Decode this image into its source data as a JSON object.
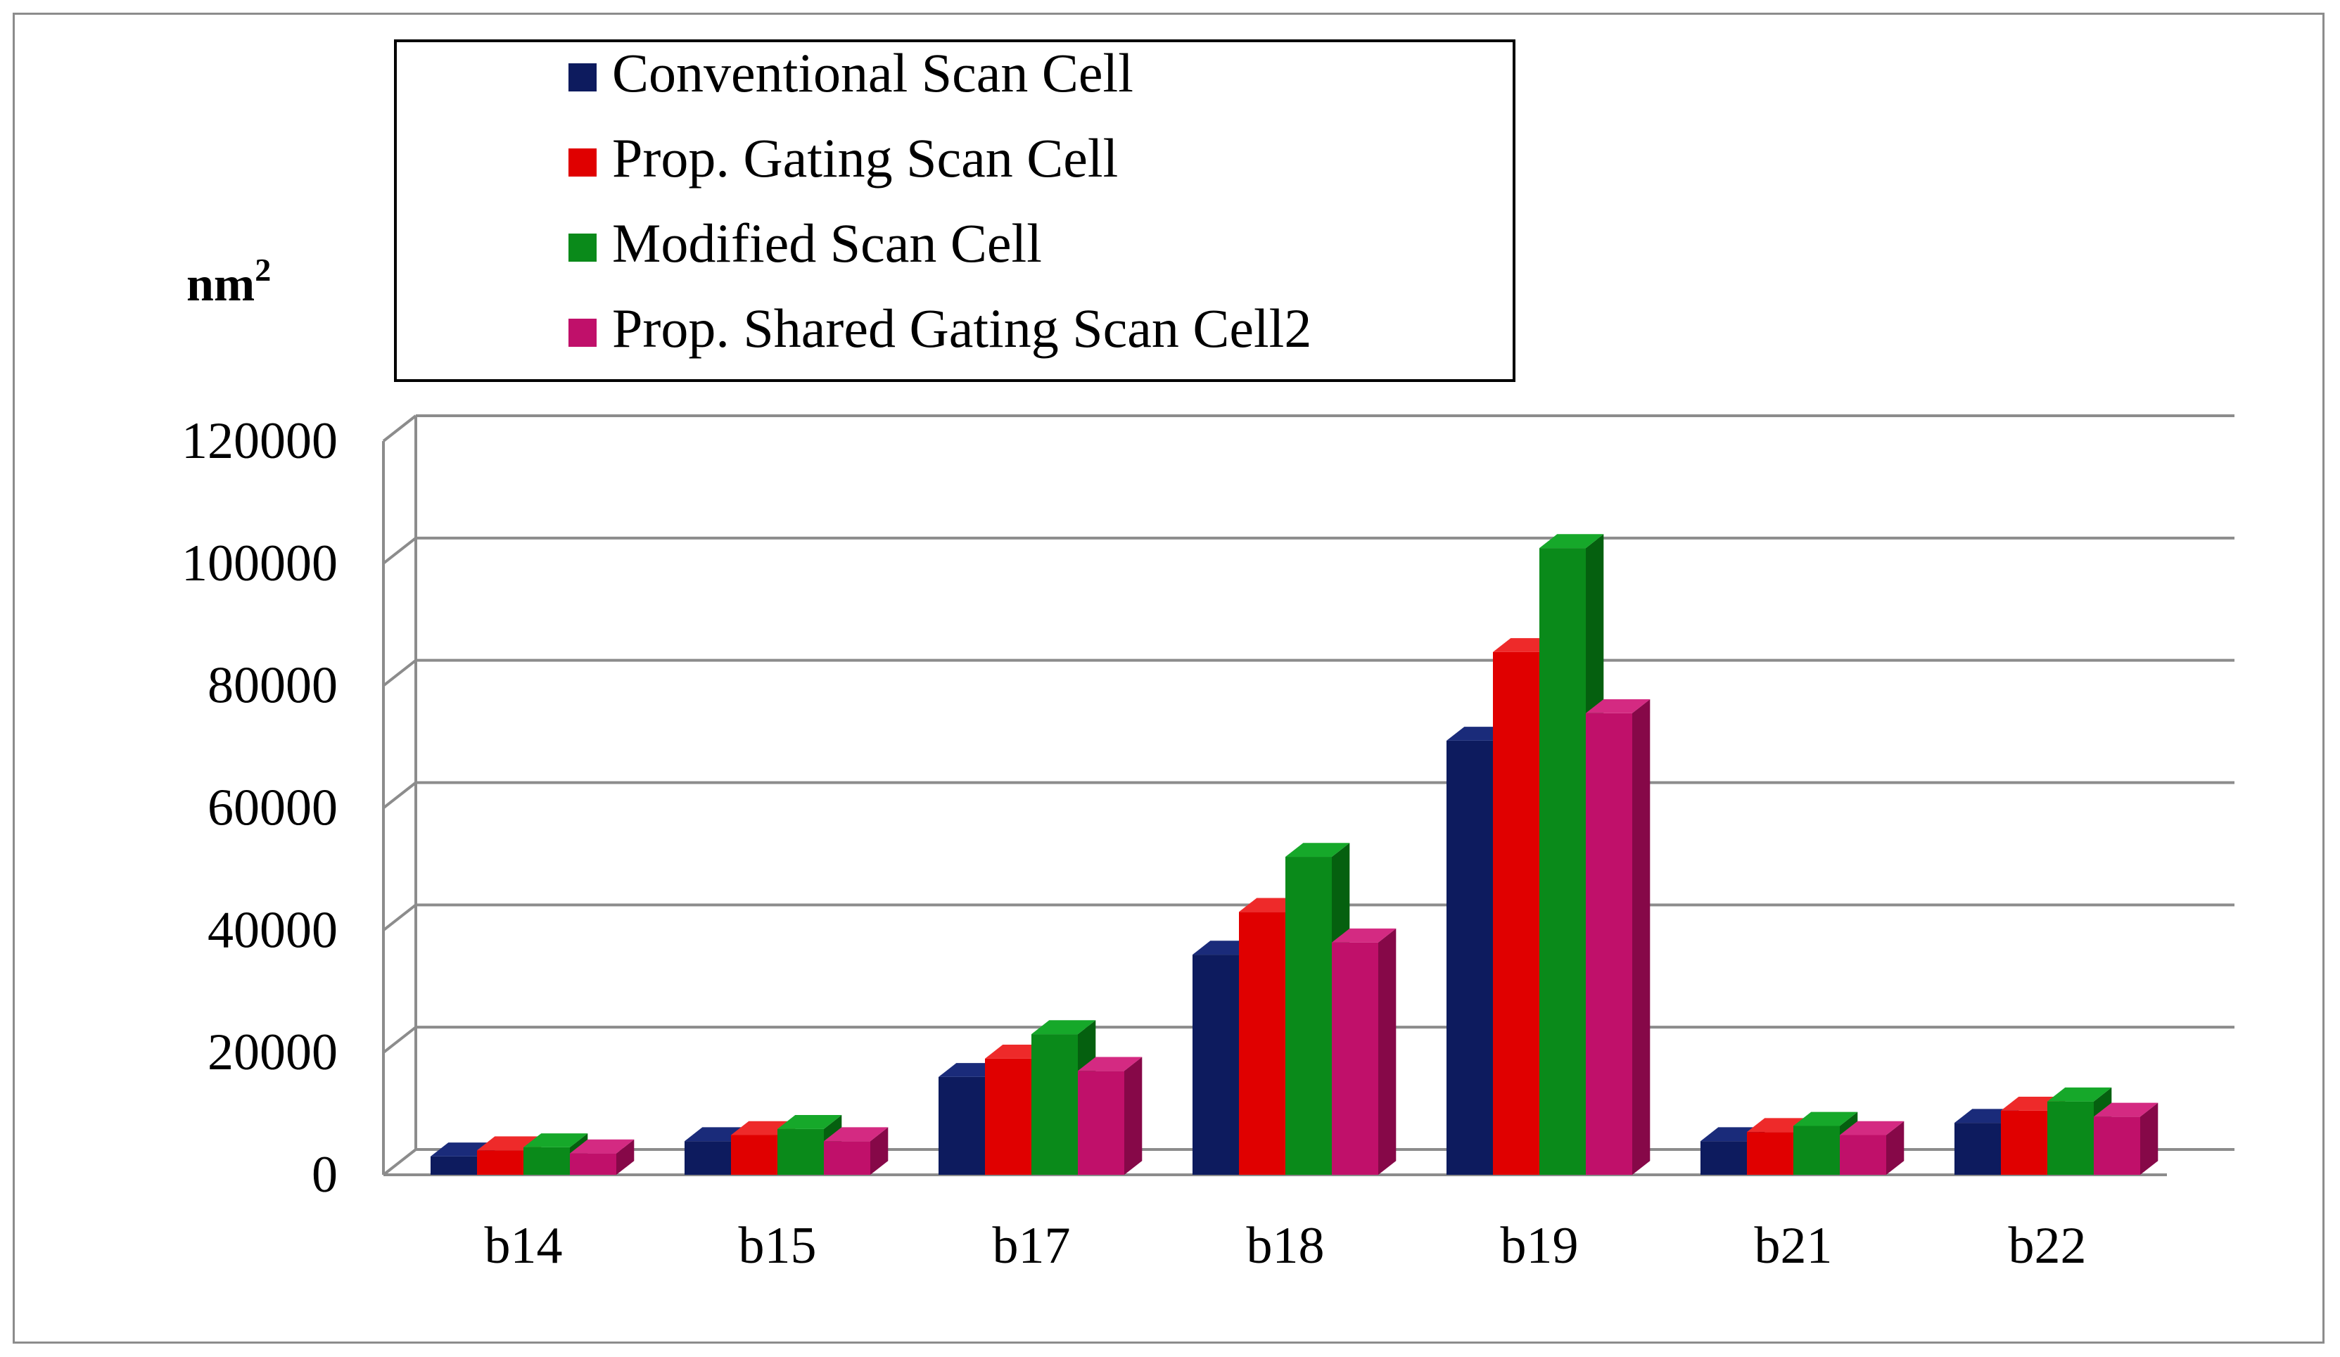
{
  "chart_data": {
    "type": "bar",
    "title": "",
    "xlabel": "",
    "ylabel": "nm",
    "ylabel_superscript": "2",
    "ylim": [
      0,
      120000
    ],
    "yticks": [
      0,
      20000,
      40000,
      60000,
      80000,
      100000,
      120000
    ],
    "grid": true,
    "legend_position": "top",
    "categories": [
      "b14",
      "b15",
      "b17",
      "b18",
      "b19",
      "b21",
      "b22"
    ],
    "series": [
      {
        "name": "Conventional Scan Cell",
        "color": "#0d1b5e",
        "side_color": "#061040",
        "top_color": "#1a2b7a",
        "values": [
          3000,
          5500,
          16000,
          36000,
          71000,
          5500,
          8500
        ]
      },
      {
        "name": "Prop. Gating Scan Cell",
        "color": "#e00000",
        "side_color": "#9a0000",
        "top_color": "#ee2a2a",
        "values": [
          4000,
          6500,
          19000,
          43000,
          85500,
          7000,
          10500
        ]
      },
      {
        "name": "Modified Scan Cell",
        "color": "#0a8a1a",
        "side_color": "#05600f",
        "top_color": "#16a82a",
        "values": [
          4500,
          7500,
          23000,
          52000,
          102500,
          8000,
          12000
        ]
      },
      {
        "name": "Prop. Shared Gating Scan Cell2",
        "color": "#c0106a",
        "side_color": "#860848",
        "top_color": "#d42a82",
        "values": [
          3500,
          5500,
          17000,
          38000,
          75500,
          6500,
          9500
        ]
      }
    ]
  }
}
